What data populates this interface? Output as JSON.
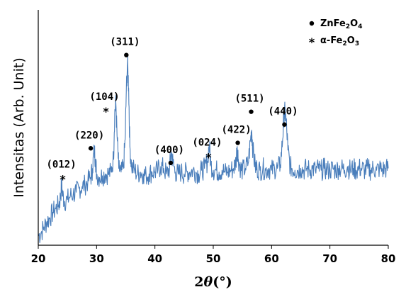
{
  "chart_data": {
    "type": "line",
    "title": "",
    "xlabel": "2θ(°)",
    "xlabel_parts": [
      "2",
      "θ",
      "(°)"
    ],
    "ylabel": "Intensitas (Arb. Unit)",
    "xlim": [
      20,
      80
    ],
    "xticks": [
      20,
      30,
      40,
      50,
      60,
      70,
      80
    ],
    "ylim": [
      0,
      100
    ],
    "grid": false,
    "legend_position": "top-right",
    "line_color": "#4a7ebb",
    "legend": [
      {
        "marker": "dot",
        "label": "ZnFe2O4",
        "base": "ZnFe",
        "sub1": "2",
        "mid": "O",
        "sub2": "4"
      },
      {
        "marker": "star",
        "label": "α-Fe2O3",
        "base": "α-Fe",
        "sub1": "2",
        "mid": "O",
        "sub2": "3"
      }
    ],
    "series": [
      {
        "values": [
          [
            20.0,
            5
          ],
          [
            20.5,
            7
          ],
          [
            21.0,
            10
          ],
          [
            21.5,
            13
          ],
          [
            22.0,
            15
          ],
          [
            22.5,
            18
          ],
          [
            23.0,
            20
          ],
          [
            23.5,
            22
          ],
          [
            23.8,
            26
          ],
          [
            24.0,
            33
          ],
          [
            24.2,
            27
          ],
          [
            24.5,
            24
          ],
          [
            25.0,
            25
          ],
          [
            25.5,
            27
          ],
          [
            26.0,
            28
          ],
          [
            26.5,
            29
          ],
          [
            27.0,
            31
          ],
          [
            27.5,
            32
          ],
          [
            28.0,
            33
          ],
          [
            28.5,
            35
          ],
          [
            29.0,
            37
          ],
          [
            29.3,
            42
          ],
          [
            29.6,
            52
          ],
          [
            29.8,
            47
          ],
          [
            30.0,
            39
          ],
          [
            30.5,
            37
          ],
          [
            31.0,
            38
          ],
          [
            31.5,
            39
          ],
          [
            32.0,
            39
          ],
          [
            32.5,
            40
          ],
          [
            32.9,
            48
          ],
          [
            33.1,
            72
          ],
          [
            33.3,
            78
          ],
          [
            33.5,
            60
          ],
          [
            33.8,
            42
          ],
          [
            34.2,
            40
          ],
          [
            34.6,
            42
          ],
          [
            34.9,
            58
          ],
          [
            35.1,
            85
          ],
          [
            35.3,
            100
          ],
          [
            35.5,
            86
          ],
          [
            35.7,
            54
          ],
          [
            36.0,
            43
          ],
          [
            36.5,
            41
          ],
          [
            37.0,
            39
          ],
          [
            37.5,
            40
          ],
          [
            38.0,
            39
          ],
          [
            38.5,
            38
          ],
          [
            39.0,
            39
          ],
          [
            39.5,
            40
          ],
          [
            40.0,
            40
          ],
          [
            40.5,
            41
          ],
          [
            41.0,
            43
          ],
          [
            41.5,
            42
          ],
          [
            42.0,
            39
          ],
          [
            42.5,
            42
          ],
          [
            42.8,
            51
          ],
          [
            43.1,
            45
          ],
          [
            43.5,
            40
          ],
          [
            44.0,
            39
          ],
          [
            44.5,
            40
          ],
          [
            45.0,
            39
          ],
          [
            45.5,
            40
          ],
          [
            46.0,
            40
          ],
          [
            46.5,
            41
          ],
          [
            47.0,
            40
          ],
          [
            47.5,
            39
          ],
          [
            48.0,
            41
          ],
          [
            48.5,
            42
          ],
          [
            49.0,
            46
          ],
          [
            49.3,
            55
          ],
          [
            49.6,
            44
          ],
          [
            50.0,
            41
          ],
          [
            50.5,
            41
          ],
          [
            51.0,
            40
          ],
          [
            51.5,
            41
          ],
          [
            52.0,
            40
          ],
          [
            52.5,
            40
          ],
          [
            53.0,
            41
          ],
          [
            53.5,
            42
          ],
          [
            53.9,
            46
          ],
          [
            54.1,
            54
          ],
          [
            54.3,
            47
          ],
          [
            54.7,
            42
          ],
          [
            55.0,
            41
          ],
          [
            55.5,
            42
          ],
          [
            56.0,
            45
          ],
          [
            56.4,
            58
          ],
          [
            56.6,
            63
          ],
          [
            56.8,
            52
          ],
          [
            57.2,
            43
          ],
          [
            57.5,
            42
          ],
          [
            58.0,
            41
          ],
          [
            58.5,
            42
          ],
          [
            59.0,
            41
          ],
          [
            59.5,
            42
          ],
          [
            60.0,
            41
          ],
          [
            60.5,
            42
          ],
          [
            61.0,
            42
          ],
          [
            61.5,
            44
          ],
          [
            61.9,
            58
          ],
          [
            62.1,
            70
          ],
          [
            62.3,
            73
          ],
          [
            62.5,
            68
          ],
          [
            62.8,
            52
          ],
          [
            63.2,
            43
          ],
          [
            63.5,
            42
          ],
          [
            64.0,
            41
          ],
          [
            64.5,
            41
          ],
          [
            65.0,
            42
          ],
          [
            65.5,
            41
          ],
          [
            66.0,
            42
          ],
          [
            66.5,
            41
          ],
          [
            67.0,
            42
          ],
          [
            67.5,
            41
          ],
          [
            68.0,
            42
          ],
          [
            68.5,
            41
          ],
          [
            69.0,
            42
          ],
          [
            69.5,
            41
          ],
          [
            70.0,
            41
          ],
          [
            70.5,
            42
          ],
          [
            71.0,
            41
          ],
          [
            71.5,
            42
          ],
          [
            72.0,
            42
          ],
          [
            72.5,
            41
          ],
          [
            73.0,
            43
          ],
          [
            73.5,
            41
          ],
          [
            74.0,
            42
          ],
          [
            74.5,
            41
          ],
          [
            75.0,
            42
          ],
          [
            75.5,
            42
          ],
          [
            76.0,
            41
          ],
          [
            76.5,
            42
          ],
          [
            77.0,
            41
          ],
          [
            77.5,
            42
          ],
          [
            78.0,
            41
          ],
          [
            78.5,
            42
          ],
          [
            79.0,
            41
          ],
          [
            79.5,
            42
          ],
          [
            80.0,
            42
          ]
        ]
      }
    ],
    "annotations": [
      {
        "label": "(012)",
        "marker": "star",
        "x": 24.2,
        "y": 37
      },
      {
        "label": "(220)",
        "marker": "dot",
        "x": 29.0,
        "y": 53
      },
      {
        "label": "(104)",
        "marker": "star",
        "x": 31.6,
        "y": 74
      },
      {
        "label": "(311)",
        "marker": "dot",
        "x": 35.1,
        "y": 104
      },
      {
        "label": "(400)",
        "marker": "dot",
        "x": 42.7,
        "y": 45
      },
      {
        "label": "(024)",
        "marker": "star",
        "x": 49.2,
        "y": 49
      },
      {
        "label": "(422)",
        "marker": "dot",
        "x": 54.2,
        "y": 56
      },
      {
        "label": "(511)",
        "marker": "dot",
        "x": 56.5,
        "y": 73
      },
      {
        "label": "(440)",
        "marker": "dot",
        "x": 62.2,
        "y": 66
      }
    ]
  }
}
